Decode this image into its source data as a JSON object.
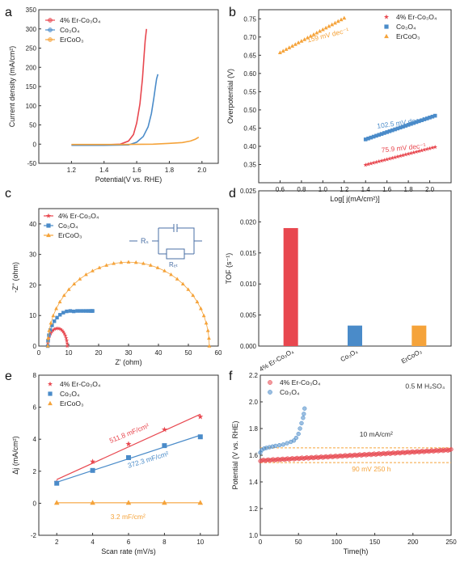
{
  "colors": {
    "er": "#e8474f",
    "co": "#4a8bc9",
    "erco": "#f5a33a",
    "axis": "#333333"
  },
  "chart_data": [
    {
      "panel": "a",
      "type": "line",
      "xlabel": "Potential(V vs. RHE)",
      "ylabel": "Current density (mA/cm²)",
      "xlim": [
        1.0,
        2.1
      ],
      "ylim": [
        -50,
        350
      ],
      "xticks": [
        "1.2",
        "1.4",
        "1.6",
        "1.8",
        "2.0"
      ],
      "yticks": [
        "-50",
        "0",
        "50",
        "100",
        "150",
        "200",
        "250",
        "300",
        "350"
      ],
      "legend": [
        "4% Er-Co₃O₄",
        "Co₃O₄",
        "ErCoO₃"
      ],
      "series": [
        {
          "name": "4% Er-Co₃O₄",
          "color": "er",
          "x": [
            1.2,
            1.4,
            1.5,
            1.55,
            1.58,
            1.6,
            1.62,
            1.635,
            1.645,
            1.652,
            1.66
          ],
          "y": [
            -2,
            -2,
            0,
            8,
            25,
            55,
            105,
            170,
            230,
            270,
            300
          ]
        },
        {
          "name": "Co₃O₄",
          "color": "co",
          "x": [
            1.2,
            1.4,
            1.55,
            1.6,
            1.64,
            1.67,
            1.69,
            1.705,
            1.715,
            1.722,
            1.73
          ],
          "y": [
            -3,
            -3,
            -2,
            5,
            20,
            45,
            80,
            120,
            150,
            170,
            182
          ]
        },
        {
          "name": "ErCoO₃",
          "color": "erco",
          "x": [
            1.2,
            1.5,
            1.7,
            1.8,
            1.88,
            1.93,
            1.96,
            1.98
          ],
          "y": [
            -1,
            -1,
            0,
            2,
            4,
            8,
            13,
            18
          ]
        }
      ]
    },
    {
      "panel": "b",
      "type": "scatter",
      "xlabel": "Log[ j(mA/cm²)]",
      "ylabel": "Overpotential (V)",
      "xlim": [
        0.4,
        2.2
      ],
      "ylim": [
        0.3,
        0.775
      ],
      "xticks": [
        "0.6",
        "0.8",
        "1.0",
        "1.2",
        "1.4",
        "1.6",
        "1.8",
        "2.0"
      ],
      "yticks": [
        "0.35",
        "0.40",
        "0.45",
        "0.50",
        "0.55",
        "0.60",
        "0.65",
        "0.70",
        "0.75"
      ],
      "legend": [
        "4% Er-Co₃O₄",
        "Co₃O₄",
        "ErCoO₃"
      ],
      "series": [
        {
          "name": "4% Er-Co₃O₄",
          "color": "er",
          "marker": "star",
          "x_range": [
            1.4,
            2.05
          ],
          "y_range": [
            0.349,
            0.398
          ],
          "n": 27
        },
        {
          "name": "Co₃O₄",
          "color": "co",
          "marker": "square",
          "x_range": [
            1.4,
            2.05
          ],
          "y_range": [
            0.419,
            0.484
          ],
          "n": 27
        },
        {
          "name": "ErCoO₃",
          "color": "erco",
          "marker": "triangle",
          "x_range": [
            0.6,
            1.2
          ],
          "y_range": [
            0.657,
            0.752
          ],
          "n": 22
        }
      ],
      "annotations": [
        {
          "text": "159 mV dec⁻¹",
          "color": "erco",
          "x": 0.86,
          "y": 0.685,
          "rotate": -14
        },
        {
          "text": "102.5 mV dec⁻¹",
          "color": "co",
          "x": 1.51,
          "y": 0.449,
          "rotate": -8
        },
        {
          "text": "75.9 mV dec⁻¹",
          "color": "er",
          "x": 1.55,
          "y": 0.383,
          "rotate": -6
        }
      ]
    },
    {
      "panel": "c",
      "type": "scatter",
      "xlabel": "Z' (ohm)",
      "ylabel": "-Z'' (ohm)",
      "xlim": [
        0,
        60
      ],
      "ylim": [
        0,
        45
      ],
      "xticks": [
        "0",
        "10",
        "20",
        "30",
        "40",
        "50",
        "60"
      ],
      "yticks": [
        "0",
        "10",
        "20",
        "30",
        "40"
      ],
      "legend": [
        "4% Er-Co₃O₄",
        "Co₃O₄",
        "ErCoO₃"
      ],
      "series": [
        {
          "name": "4% Er-Co₃O₄",
          "color": "er",
          "marker": "star",
          "semicircle": {
            "x0": 3,
            "x1": 9.5,
            "peak": 5.8,
            "n": 20
          }
        },
        {
          "name": "Co₃O₄",
          "color": "co",
          "marker": "square",
          "semicircle": {
            "x0": 3,
            "x1": 18,
            "peak": 11.5,
            "tail_from": 12,
            "n": 20
          }
        },
        {
          "name": "ErCoO₃",
          "color": "erco",
          "marker": "triangle",
          "semicircle": {
            "x0": 3,
            "x1": 57,
            "peak": 27.5,
            "n": 34
          }
        }
      ],
      "circuit": {
        "r1": "Rₛ",
        "r2": "Rₑₜ"
      }
    },
    {
      "panel": "d",
      "type": "bar",
      "ylabel": "TOF (s⁻¹)",
      "ylim": [
        0,
        0.025
      ],
      "yticks": [
        "0.000",
        "0.005",
        "0.010",
        "0.015",
        "0.020",
        "0.025"
      ],
      "categories": [
        "4% Er-Co₃O₄",
        "Co₃O₄",
        "ErCoO₃"
      ],
      "values": [
        0.019,
        0.0033,
        0.0033
      ],
      "bar_colors": [
        "er",
        "co",
        "erco"
      ]
    },
    {
      "panel": "e",
      "type": "scatter",
      "xlabel": "Scan rate (mV/s)",
      "ylabel": "Δj (mA/cm²)",
      "xlim": [
        1,
        11
      ],
      "ylim": [
        -2,
        8
      ],
      "xticks": [
        "2",
        "4",
        "6",
        "8",
        "10"
      ],
      "yticks": [
        "-2",
        "0",
        "2",
        "4",
        "6",
        "8"
      ],
      "legend": [
        "4% Er-Co₃O₄",
        "Co₃O₄",
        "ErCoO₃"
      ],
      "series": [
        {
          "name": "4% Er-Co₃O₄",
          "color": "er",
          "marker": "star",
          "x": [
            2,
            4,
            6,
            8,
            10
          ],
          "y": [
            1.3,
            2.6,
            3.7,
            4.6,
            5.4
          ]
        },
        {
          "name": "Co₃O₄",
          "color": "co",
          "marker": "square",
          "x": [
            2,
            4,
            6,
            8,
            10
          ],
          "y": [
            1.25,
            2.05,
            2.85,
            3.6,
            4.15
          ]
        },
        {
          "name": "ErCoO₃",
          "color": "erco",
          "marker": "triangle",
          "x": [
            2,
            4,
            6,
            8,
            10
          ],
          "y": [
            0.03,
            0.03,
            0.03,
            0.03,
            0.03
          ]
        }
      ],
      "annotations": [
        {
          "text": "511.8 mF/cm²",
          "color": "er",
          "x": 5.0,
          "y": 3.75,
          "rotate": -22
        },
        {
          "text": "372.3 mF/cm²",
          "color": "co",
          "x": 6.0,
          "y": 2.2,
          "rotate": -17
        },
        {
          "text": "3.2 mF/cm²",
          "color": "erco",
          "x": 5.0,
          "y": -1.0,
          "rotate": 0
        }
      ]
    },
    {
      "panel": "f",
      "type": "scatter",
      "xlabel": "Time(h)",
      "ylabel": "Potential (V vs. RHE)",
      "xlim": [
        0,
        250
      ],
      "ylim": [
        1.0,
        2.2
      ],
      "xticks": [
        "0",
        "50",
        "100",
        "150",
        "200",
        "250"
      ],
      "yticks": [
        "1.0",
        "1.2",
        "1.4",
        "1.6",
        "1.8",
        "2.0",
        "2.2"
      ],
      "legend": [
        "4% Er-Co₃O₄",
        "Co₃O₄"
      ],
      "series": [
        {
          "name": "4% Er-Co₃O₄",
          "color": "er",
          "marker": "circle",
          "x_range": [
            0,
            250
          ],
          "y_range": [
            1.56,
            1.64
          ],
          "n": 120
        },
        {
          "name": "Co₃O₄",
          "color": "co",
          "marker": "circle",
          "x": [
            0,
            2,
            5,
            8,
            12,
            16,
            20,
            25,
            30,
            35,
            40,
            44,
            47,
            50,
            52,
            54,
            56,
            57,
            58
          ],
          "y": [
            1.62,
            1.64,
            1.65,
            1.655,
            1.66,
            1.665,
            1.67,
            1.675,
            1.68,
            1.69,
            1.7,
            1.71,
            1.73,
            1.76,
            1.8,
            1.84,
            1.88,
            1.91,
            1.95
          ]
        }
      ],
      "ref_lines": [
        1.655,
        1.545
      ],
      "annotations": [
        {
          "text": "0.5 M H₂SO₄",
          "color": "axis",
          "x": 190,
          "y": 2.1
        },
        {
          "text": "10 mA/cm²",
          "color": "axis",
          "x": 130,
          "y": 1.74
        },
        {
          "text": "90 mV 250 h",
          "color": "erco",
          "x": 120,
          "y": 1.48
        }
      ]
    }
  ],
  "panel_labels": [
    "a",
    "b",
    "c",
    "d",
    "e",
    "f"
  ]
}
